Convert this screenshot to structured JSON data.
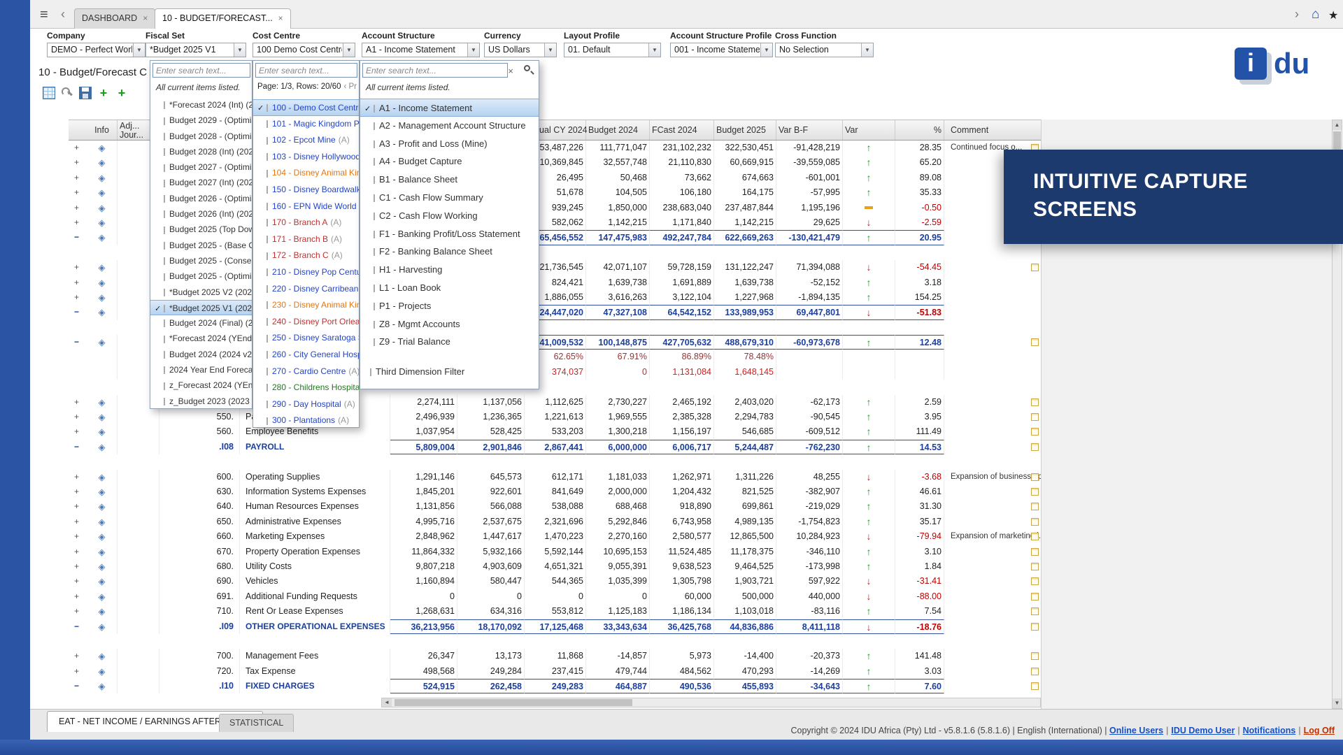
{
  "icons": {
    "menu": "≡",
    "chevron_left": "‹",
    "chevron_right": "›",
    "home": "⌂",
    "star": "★",
    "close": "×",
    "dropdown": "▼",
    "check": "✓",
    "diamond": "◈",
    "up": "↑",
    "down": "↓",
    "prev": "◄",
    "scroll_up": "▲",
    "scroll_down": "▼",
    "plus": "+"
  },
  "topbar": {
    "tab_dashboard": "DASHBOARD",
    "tab_active": "10 - BUDGET/FORECAST..."
  },
  "page": {
    "title": "10 - Budget/Forecast C"
  },
  "logo": {
    "i": "i",
    "du": "du"
  },
  "banner": {
    "line1": "INTUITIVE CAPTURE",
    "line2": "SCREENS"
  },
  "filters": {
    "company": {
      "label": "Company",
      "value": "DEMO - Perfect World L..."
    },
    "fiscal": {
      "label": "Fiscal Set",
      "value": "*Budget 2025 V1"
    },
    "cost": {
      "label": "Cost Centre",
      "value": "100 Demo Cost Centre"
    },
    "account": {
      "label": "Account Structure",
      "value": "A1 - Income Statement"
    },
    "currency": {
      "label": "Currency",
      "value": "US Dollars"
    },
    "layout": {
      "label": "Layout Profile",
      "value": "01. Default"
    },
    "asprofile": {
      "label": "Account Structure Profile",
      "value": "001 - Income Statement"
    },
    "crossfn": {
      "label": "Cross Function",
      "value": "No Selection"
    }
  },
  "panels": {
    "fiscal": {
      "search_placeholder": "Enter search text...",
      "note": "All current items listed.",
      "items": [
        {
          "label": "*Forecast 2024 (Int) (202...",
          "checked": false
        },
        {
          "label": "Budget 2029 - (Optimisti...",
          "checked": false
        },
        {
          "label": "Budget 2028 - (Optimisti...",
          "checked": false
        },
        {
          "label": "Budget 2028 (Int) (2028 ...",
          "checked": false
        },
        {
          "label": "Budget 2027 - (Optimisti...",
          "checked": false
        },
        {
          "label": "Budget 2027 (Int) (2027 ...",
          "checked": false
        },
        {
          "label": "Budget 2026 - (Optimisti...",
          "checked": false
        },
        {
          "label": "Budget 2026 (Int) (2026 ...",
          "checked": false
        },
        {
          "label": "Budget 2025 (Top Down) ...",
          "checked": false
        },
        {
          "label": "Budget 2025 - (Base Cas...",
          "checked": false
        },
        {
          "label": "Budget 2025 - (Conserva...",
          "checked": false
        },
        {
          "label": "Budget 2025 - (Optimisti...",
          "checked": false
        },
        {
          "label": "*Budget 2025 V2 (2025 v...",
          "checked": false
        },
        {
          "label": "*Budget 2025 V1 (2025 v...",
          "checked": true
        },
        {
          "label": "Budget 2024 (Final) (202...",
          "checked": false
        },
        {
          "label": "*Forecast 2024 (YEnd) (2...",
          "checked": false
        },
        {
          "label": "Budget 2024 (2024 v2) (...",
          "checked": false
        },
        {
          "label": "2024 Year End Forecast ...",
          "checked": false
        },
        {
          "label": "z_Forecast 2024 (YEnd V...",
          "checked": false
        },
        {
          "label": "z_Budget 2023 (2023 v1)...",
          "checked": false
        }
      ]
    },
    "cost": {
      "search_placeholder": "Enter search text...",
      "page_info": "Page: 1/3, Rows: 20/60",
      "prev": "‹ Pr",
      "items": [
        {
          "label": "100 - Demo Cost Centre",
          "suffix": "",
          "color": "blue",
          "checked": true
        },
        {
          "label": "101 - Magic Kingdom Par...",
          "suffix": "",
          "color": "blue",
          "checked": false
        },
        {
          "label": "102 - Epcot Mine",
          "suffix": "(A)",
          "color": "blue",
          "checked": false
        },
        {
          "label": "103 - Disney Hollywood S...",
          "suffix": "",
          "color": "blue",
          "checked": false
        },
        {
          "label": "104 - Disney Animal King...",
          "suffix": "",
          "color": "orange",
          "checked": false
        },
        {
          "label": "150 - Disney Boardwalk",
          "suffix": "(A)",
          "color": "blue",
          "checked": false
        },
        {
          "label": "160 - EPN Wide World of ...",
          "suffix": "",
          "color": "blue",
          "checked": false
        },
        {
          "label": "170 - Branch A",
          "suffix": "(A)",
          "color": "red",
          "checked": false
        },
        {
          "label": "171 - Branch B",
          "suffix": "(A)",
          "color": "red",
          "checked": false
        },
        {
          "label": "172 - Branch C",
          "suffix": "(A)",
          "color": "red",
          "checked": false
        },
        {
          "label": "210 - Disney Pop Century ...",
          "suffix": "",
          "color": "blue",
          "checked": false
        },
        {
          "label": "220 - Disney Carribean Be...",
          "suffix": "",
          "color": "blue",
          "checked": false
        },
        {
          "label": "230 - Disney Animal King...",
          "suffix": "",
          "color": "orange",
          "checked": false
        },
        {
          "label": "240 - Disney Port Orleans ...",
          "suffix": "",
          "color": "red",
          "checked": false
        },
        {
          "label": "250 - Disney Saratoga Sp...",
          "suffix": "",
          "color": "blue",
          "checked": false
        },
        {
          "label": "260 - City General Hospit...",
          "suffix": "",
          "color": "blue",
          "checked": false
        },
        {
          "label": "270 - Cardio Centre",
          "suffix": "(A)",
          "color": "blue",
          "checked": false
        },
        {
          "label": "280 - Childrens Hospital",
          "suffix": "(A)",
          "color": "green",
          "checked": false
        },
        {
          "label": "290 - Day Hospital",
          "suffix": "(A)",
          "color": "blue",
          "checked": false
        },
        {
          "label": "300 - Plantations",
          "suffix": "(A)",
          "color": "blue",
          "checked": false
        }
      ]
    },
    "account": {
      "search_placeholder": "Enter search text...",
      "note": "All current items listed.",
      "items": [
        {
          "label": "A1 - Income Statement",
          "checked": true
        },
        {
          "label": "A2 - Management Account Structure",
          "checked": false
        },
        {
          "label": "A3 - Profit and Loss (Mine)",
          "checked": false
        },
        {
          "label": "A4 - Budget Capture",
          "checked": false
        },
        {
          "label": "B1 - Balance Sheet",
          "checked": false
        },
        {
          "label": "C1 - Cash Flow Summary",
          "checked": false
        },
        {
          "label": "C2 - Cash Flow Working",
          "checked": false
        },
        {
          "label": "F1 - Banking Profit/Loss Statement",
          "checked": false
        },
        {
          "label": "F2 - Banking Balance Sheet",
          "checked": false
        },
        {
          "label": "H1 - Harvesting",
          "checked": false
        },
        {
          "label": "L1 - Loan Book",
          "checked": false
        },
        {
          "label": "P1 - Projects",
          "checked": false
        },
        {
          "label": "Z8 - Mgmt Accounts",
          "checked": false
        },
        {
          "label": "Z9 - Trial Balance",
          "checked": false
        }
      ],
      "footer_item": "Third Dimension Filter"
    }
  },
  "table": {
    "headers": {
      "info": "Info",
      "adj_line1": "Adj...",
      "adj_line2": "Jour...",
      "v1": "Actual CY 2024",
      "v2": "Budget 2024",
      "v3": "FCast 2024",
      "v4": "Budget 2025",
      "v5": "Var B-F",
      "var": "Var",
      "pct": "%",
      "comment": "Comment"
    },
    "rows": [
      {
        "t": "d",
        "e": "+",
        "v1": "53,487,226",
        "v2": "111,771,047",
        "v3": "231,102,232",
        "v4": "322,530,451",
        "v5": "-91,428,219",
        "a": "up",
        "p": "28.35",
        "c": "Continued focus o...",
        "ci": 1
      },
      {
        "t": "d",
        "e": "+",
        "v1": "10,369,845",
        "v2": "32,557,748",
        "v3": "21,110,830",
        "v4": "60,669,915",
        "v5": "-39,559,085",
        "a": "up",
        "p": "65.20"
      },
      {
        "t": "d",
        "e": "+",
        "v1": "26,495",
        "v2": "50,468",
        "v3": "73,662",
        "v4": "674,663",
        "v5": "-601,001",
        "a": "up",
        "p": "89.08"
      },
      {
        "t": "d",
        "e": "+",
        "v1": "51,678",
        "v2": "104,505",
        "v3": "106,180",
        "v4": "164,175",
        "v5": "-57,995",
        "a": "up",
        "p": "35.33"
      },
      {
        "t": "d",
        "e": "+",
        "v1": "939,245",
        "v2": "1,850,000",
        "v3": "238,683,040",
        "v4": "237,487,844",
        "v5": "1,195,196",
        "a": "dash",
        "p": "-0.50"
      },
      {
        "t": "d",
        "e": "+",
        "v1": "582,062",
        "v2": "1,142,215",
        "v3": "1,171,840",
        "v4": "1,142,215",
        "v5": "29,625",
        "a": "down",
        "p": "-2.59"
      },
      {
        "t": "t",
        "e": "−",
        "v1": "65,456,552",
        "v2": "147,475,983",
        "v3": "492,247,784",
        "v4": "622,669,263",
        "v5": "-130,421,479",
        "a": "up",
        "p": "20.95",
        "ci": 1
      },
      {
        "t": "b"
      },
      {
        "t": "d",
        "e": "+",
        "v1": "21,736,545",
        "v2": "42,071,107",
        "v3": "59,728,159",
        "v4": "131,122,247",
        "v5": "71,394,088",
        "a": "down",
        "p": "-54.45",
        "ci": 1
      },
      {
        "t": "d",
        "e": "+",
        "v1": "824,421",
        "v2": "1,639,738",
        "v3": "1,691,889",
        "v4": "1,639,738",
        "v5": "-52,152",
        "a": "up",
        "p": "3.18"
      },
      {
        "t": "d",
        "e": "+",
        "v1": "1,886,055",
        "v2": "3,616,263",
        "v3": "3,122,104",
        "v4": "1,227,968",
        "v5": "-1,894,135",
        "a": "up",
        "p": "154.25"
      },
      {
        "t": "t",
        "e": "−",
        "v1": "24,447,020",
        "v2": "47,327,108",
        "v3": "64,542,152",
        "v4": "133,989,953",
        "v5": "69,447,801",
        "a": "down",
        "p": "-51.83"
      },
      {
        "t": "b"
      },
      {
        "t": "t",
        "e": "−",
        "v1": "41,009,532",
        "v2": "100,148,875",
        "v3": "427,705,632",
        "v4": "488,679,310",
        "v5": "-60,973,678",
        "a": "up",
        "p": "12.48",
        "ci": 1
      },
      {
        "t": "p",
        "v1": "62.65%",
        "v2": "67.91%",
        "v3": "86.89%",
        "v4": "78.48%"
      },
      {
        "t": "r",
        "v1": "374,037",
        "v2": "0",
        "v3": "1,131,084",
        "v4": "1,648,145"
      },
      {
        "t": "b"
      },
      {
        "t": "d",
        "e": "+",
        "c1": "2,274,111",
        "c2": "1,137,056",
        "v1": "1,112,625",
        "v2": "2,730,227",
        "v3": "2,465,192",
        "v4": "2,403,020",
        "v5": "-62,173",
        "a": "up",
        "p": "2.59",
        "ci": 1
      },
      {
        "t": "d",
        "e": "+",
        "code": "550.",
        "name": "Pa",
        "c1": "2,496,939",
        "c2": "1,236,365",
        "v1": "1,221,613",
        "v2": "1,969,555",
        "v3": "2,385,328",
        "v4": "2,294,783",
        "v5": "-90,545",
        "a": "up",
        "p": "3.95",
        "ci": 1
      },
      {
        "t": "d",
        "e": "+",
        "code": "560.",
        "name": "Employee Benefits",
        "c1": "1,037,954",
        "c2": "528,425",
        "v1": "533,203",
        "v2": "1,300,218",
        "v3": "1,156,197",
        "v4": "546,685",
        "v5": "-609,512",
        "a": "up",
        "p": "111.49",
        "ci": 1
      },
      {
        "t": "t",
        "e": "−",
        "code": ".I08",
        "name": "PAYROLL",
        "c1": "5,809,004",
        "c2": "2,901,846",
        "v1": "2,867,441",
        "v2": "6,000,000",
        "v3": "6,006,717",
        "v4": "5,244,487",
        "v5": "-762,230",
        "a": "up",
        "p": "14.53",
        "ci": 1
      },
      {
        "t": "b"
      },
      {
        "t": "d",
        "e": "+",
        "code": "600.",
        "name": "Operating Supplies",
        "c1": "1,291,146",
        "c2": "645,573",
        "v1": "612,171",
        "v2": "1,181,033",
        "v3": "1,262,971",
        "v4": "1,311,226",
        "v5": "48,255",
        "a": "down",
        "p": "-3.68",
        "c": "Expansion of business op...",
        "ci": 1
      },
      {
        "t": "d",
        "e": "+",
        "code": "630.",
        "name": "Information Systems Expenses",
        "c1": "1,845,201",
        "c2": "922,601",
        "v1": "841,649",
        "v2": "2,000,000",
        "v3": "1,204,432",
        "v4": "821,525",
        "v5": "-382,907",
        "a": "up",
        "p": "46.61",
        "ci": 1
      },
      {
        "t": "d",
        "e": "+",
        "code": "640.",
        "name": "Human Resources Expenses",
        "c1": "1,131,856",
        "c2": "566,088",
        "v1": "538,088",
        "v2": "688,468",
        "v3": "918,890",
        "v4": "699,861",
        "v5": "-219,029",
        "a": "up",
        "p": "31.30",
        "ci": 1
      },
      {
        "t": "d",
        "e": "+",
        "code": "650.",
        "name": "Administrative Expenses",
        "c1": "4,995,716",
        "c2": "2,537,675",
        "v1": "2,321,696",
        "v2": "5,292,846",
        "v3": "6,743,958",
        "v4": "4,989,135",
        "v5": "-1,754,823",
        "a": "up",
        "p": "35.17",
        "ci": 1
      },
      {
        "t": "d",
        "e": "+",
        "code": "660.",
        "name": "Marketing Expenses",
        "c1": "2,848,962",
        "c2": "1,447,617",
        "v1": "1,470,223",
        "v2": "2,270,160",
        "v3": "2,580,577",
        "v4": "12,865,500",
        "v5": "10,284,923",
        "a": "down",
        "p": "-79.94",
        "c": "Expansion of marketing i...",
        "ci": 1
      },
      {
        "t": "d",
        "e": "+",
        "code": "670.",
        "name": "Property Operation Expenses",
        "c1": "11,864,332",
        "c2": "5,932,166",
        "v1": "5,592,144",
        "v2": "10,695,153",
        "v3": "11,524,485",
        "v4": "11,178,375",
        "v5": "-346,110",
        "a": "up",
        "p": "3.10",
        "ci": 1
      },
      {
        "t": "d",
        "e": "+",
        "code": "680.",
        "name": "Utility Costs",
        "c1": "9,807,218",
        "c2": "4,903,609",
        "v1": "4,651,321",
        "v2": "9,055,391",
        "v3": "9,638,523",
        "v4": "9,464,525",
        "v5": "-173,998",
        "a": "up",
        "p": "1.84",
        "ci": 1
      },
      {
        "t": "d",
        "e": "+",
        "code": "690.",
        "name": "Vehicles",
        "c1": "1,160,894",
        "c2": "580,447",
        "v1": "544,365",
        "v2": "1,035,399",
        "v3": "1,305,798",
        "v4": "1,903,721",
        "v5": "597,922",
        "a": "down",
        "p": "-31.41",
        "ci": 1
      },
      {
        "t": "d",
        "e": "+",
        "code": "691.",
        "name": "Additional Funding Requests",
        "c1": "0",
        "c2": "0",
        "v1": "0",
        "v2": "0",
        "v3": "60,000",
        "v4": "500,000",
        "v5": "440,000",
        "a": "down",
        "p": "-88.00",
        "ci": 1
      },
      {
        "t": "d",
        "e": "+",
        "code": "710.",
        "name": "Rent Or Lease Expenses",
        "c1": "1,268,631",
        "c2": "634,316",
        "v1": "553,812",
        "v2": "1,125,183",
        "v3": "1,186,134",
        "v4": "1,103,018",
        "v5": "-83,116",
        "a": "up",
        "p": "7.54",
        "ci": 1
      },
      {
        "t": "t",
        "e": "−",
        "code": ".I09",
        "name": "OTHER OPERATIONAL EXPENSES",
        "c1": "36,213,956",
        "c2": "18,170,092",
        "v1": "17,125,468",
        "v2": "33,343,634",
        "v3": "36,425,768",
        "v4": "44,836,886",
        "v5": "8,411,118",
        "a": "down",
        "p": "-18.76",
        "ci": 1
      },
      {
        "t": "b"
      },
      {
        "t": "d",
        "e": "+",
        "code": "700.",
        "name": "Management Fees",
        "c1": "26,347",
        "c2": "13,173",
        "v1": "11,868",
        "v2": "-14,857",
        "v3": "5,973",
        "v4": "-14,400",
        "v5": "-20,373",
        "a": "up",
        "p": "141.48",
        "ci": 1
      },
      {
        "t": "d",
        "e": "+",
        "code": "720.",
        "name": "Tax Expense",
        "c1": "498,568",
        "c2": "249,284",
        "v1": "237,415",
        "v2": "479,744",
        "v3": "484,562",
        "v4": "470,293",
        "v5": "-14,269",
        "a": "up",
        "p": "3.03",
        "ci": 1
      },
      {
        "t": "t",
        "e": "−",
        "code": ".I10",
        "name": "FIXED CHARGES",
        "c1": "524,915",
        "c2": "262,458",
        "v1": "249,283",
        "v2": "464,887",
        "v3": "490,536",
        "v4": "455,893",
        "v5": "-34,643",
        "a": "up",
        "p": "7.60",
        "ci": 1
      }
    ]
  },
  "bottom": {
    "tab_eat": "EAT - NET INCOME / EARNINGS AFTER TAXES",
    "tab_statistical": "STATISTICAL"
  },
  "footer": {
    "copyright": "Copyright © 2024 IDU Africa (Pty) Ltd - v5.8.1.6 (5.8.1.6) | English (International) |",
    "separator": "|",
    "links": [
      "Online Users",
      "IDU Demo User",
      "Notifications"
    ],
    "logoff": "Log Off"
  }
}
